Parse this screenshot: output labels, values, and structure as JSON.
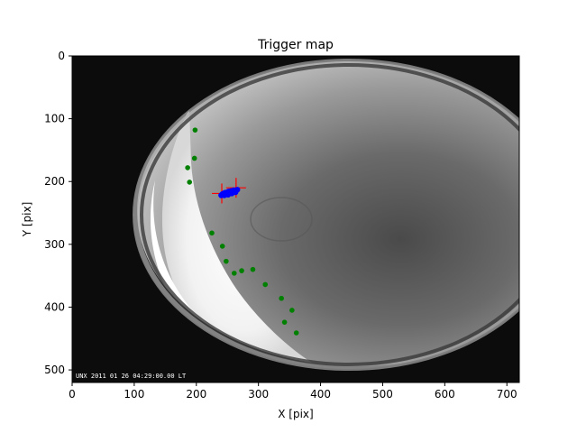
{
  "chart_data": {
    "type": "scatter",
    "title": "Trigger map",
    "xlabel": "X [pix]",
    "ylabel": "Y [pix]",
    "xlim": [
      0,
      720
    ],
    "ylim": [
      0,
      520
    ],
    "y_inverted": true,
    "x_ticks": [
      0,
      100,
      200,
      300,
      400,
      500,
      600,
      700
    ],
    "y_ticks": [
      0,
      100,
      200,
      300,
      400,
      500
    ],
    "grid": false,
    "background_image": "all-sky fisheye camera frame (grayscale)",
    "image_timestamp_text": "UNX 2011 01 26 04:29:00.00 LT",
    "series": [
      {
        "marker": "circle",
        "color": "#008000",
        "points": [
          {
            "x": 198,
            "y": 118
          },
          {
            "x": 197,
            "y": 163
          },
          {
            "x": 186,
            "y": 178
          },
          {
            "x": 189,
            "y": 201
          },
          {
            "x": 225,
            "y": 282
          },
          {
            "x": 242,
            "y": 303
          },
          {
            "x": 248,
            "y": 327
          },
          {
            "x": 261,
            "y": 346
          },
          {
            "x": 273,
            "y": 342
          },
          {
            "x": 291,
            "y": 340
          },
          {
            "x": 311,
            "y": 364
          },
          {
            "x": 337,
            "y": 386
          },
          {
            "x": 354,
            "y": 405
          },
          {
            "x": 342,
            "y": 424
          },
          {
            "x": 361,
            "y": 441
          }
        ]
      },
      {
        "marker": "plus",
        "color": "#ff0000",
        "points": [
          {
            "x": 241,
            "y": 219
          },
          {
            "x": 264,
            "y": 210
          }
        ]
      },
      {
        "marker": "circle",
        "color": "#0000ff",
        "points": [
          {
            "x": 240,
            "y": 222
          },
          {
            "x": 242,
            "y": 220
          },
          {
            "x": 244,
            "y": 219
          },
          {
            "x": 246,
            "y": 218
          },
          {
            "x": 248,
            "y": 220
          },
          {
            "x": 250,
            "y": 217
          },
          {
            "x": 252,
            "y": 216
          },
          {
            "x": 254,
            "y": 218
          },
          {
            "x": 256,
            "y": 215
          },
          {
            "x": 258,
            "y": 217
          },
          {
            "x": 260,
            "y": 214
          },
          {
            "x": 262,
            "y": 216
          },
          {
            "x": 264,
            "y": 214
          },
          {
            "x": 266,
            "y": 213
          },
          {
            "x": 245,
            "y": 222
          },
          {
            "x": 251,
            "y": 221
          },
          {
            "x": 257,
            "y": 219
          },
          {
            "x": 263,
            "y": 217
          }
        ]
      }
    ]
  }
}
